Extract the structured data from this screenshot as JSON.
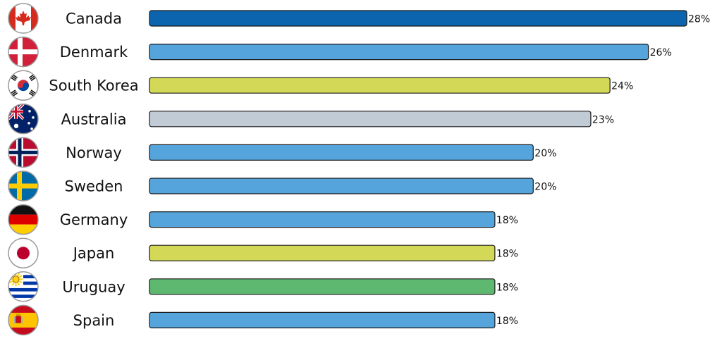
{
  "chart_data": {
    "type": "bar",
    "orientation": "horizontal",
    "title": "",
    "xlabel": "",
    "ylabel": "",
    "xlim": [
      0,
      28
    ],
    "grid": false,
    "legend": "none",
    "value_suffix": "%",
    "rows": [
      {
        "category": "Canada",
        "value": 28,
        "label": "28%",
        "color": "#0b64ad",
        "flag": "canada-flag-icon"
      },
      {
        "category": "Denmark",
        "value": 26,
        "label": "26%",
        "color": "#55a4dc",
        "flag": "denmark-flag-icon"
      },
      {
        "category": "South Korea",
        "value": 24,
        "label": "24%",
        "color": "#d3d957",
        "flag": "south-korea-flag-icon"
      },
      {
        "category": "Australia",
        "value": 23,
        "label": "23%",
        "color": "#c0cbd6",
        "flag": "australia-flag-icon"
      },
      {
        "category": "Norway",
        "value": 20,
        "label": "20%",
        "color": "#55a4dc",
        "flag": "norway-flag-icon"
      },
      {
        "category": "Sweden",
        "value": 20,
        "label": "20%",
        "color": "#55a4dc",
        "flag": "sweden-flag-icon"
      },
      {
        "category": "Germany",
        "value": 18,
        "label": "18%",
        "color": "#55a4dc",
        "flag": "germany-flag-icon"
      },
      {
        "category": "Japan",
        "value": 18,
        "label": "18%",
        "color": "#d3d957",
        "flag": "japan-flag-icon"
      },
      {
        "category": "Uruguay",
        "value": 18,
        "label": "18%",
        "color": "#5fb870",
        "flag": "uruguay-flag-icon"
      },
      {
        "category": "Spain",
        "value": 18,
        "label": "18%",
        "color": "#55a4dc",
        "flag": "spain-flag-icon"
      }
    ]
  }
}
